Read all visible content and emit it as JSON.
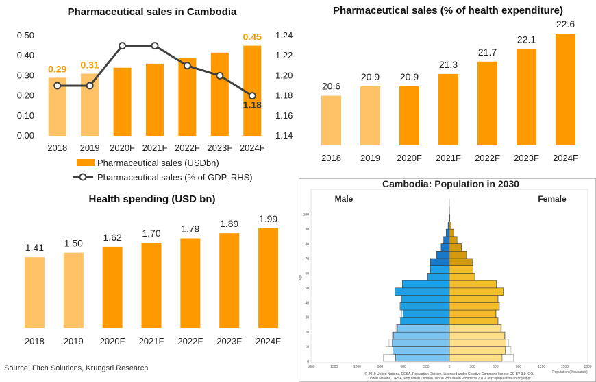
{
  "source": "Source: Fitch Solutions, Krungsri Research",
  "colors": {
    "light": "#ffc266",
    "dark": "#ff9900",
    "line": "#404040",
    "male": "#1b9be0",
    "female": "#e8ae1f"
  },
  "chart_data": [
    {
      "type": "bar+line",
      "title": "Pharmaceutical sales in Cambodia",
      "categories": [
        "2018",
        "2019",
        "2020F",
        "2021F",
        "2022F",
        "2023F",
        "2024F"
      ],
      "series": [
        {
          "name": "Pharmaceutical sales (USDbn)",
          "type": "bar",
          "axis": "left",
          "values": [
            0.29,
            0.31,
            0.34,
            0.36,
            0.39,
            0.415,
            0.45
          ],
          "data_labels": [
            "0.29",
            "0.31",
            "",
            "",
            "",
            "",
            "0.45"
          ]
        },
        {
          "name": "Pharmaceutical sales (% of GDP, RHS)",
          "type": "line",
          "axis": "right",
          "values": [
            1.19,
            1.19,
            1.23,
            1.23,
            1.21,
            1.2,
            1.18
          ],
          "data_labels": [
            "",
            "",
            "",
            "",
            "",
            "",
            "1.18"
          ]
        }
      ],
      "ylim": [
        0,
        0.5
      ],
      "yticks": [
        "0.00",
        "0.10",
        "0.20",
        "0.30",
        "0.40",
        "0.50"
      ],
      "y2lim": [
        1.14,
        1.24
      ],
      "y2ticks": [
        "1.14",
        "1.16",
        "1.18",
        "1.20",
        "1.22",
        "1.24"
      ],
      "grid": false,
      "legend": "bottom"
    },
    {
      "type": "bar",
      "title": "Pharmaceutical sales (% of health expenditure)",
      "categories": [
        "2018",
        "2019",
        "2020F",
        "2021F",
        "2022F",
        "2023F",
        "2024F"
      ],
      "values": [
        20.6,
        20.9,
        20.9,
        21.3,
        21.7,
        22.1,
        22.6
      ],
      "data_labels": [
        "20.6",
        "20.9",
        "20.9",
        "21.3",
        "21.7",
        "22.1",
        "22.6"
      ],
      "ylim": [
        19.0,
        22.8
      ],
      "grid": false
    },
    {
      "type": "bar",
      "title": "Health spending (USD bn)",
      "categories": [
        "2018",
        "2019",
        "2020F",
        "2021F",
        "2022F",
        "2023F",
        "2024F"
      ],
      "values": [
        1.41,
        1.5,
        1.62,
        1.7,
        1.79,
        1.89,
        1.99
      ],
      "data_labels": [
        "1.41",
        "1.50",
        "1.62",
        "1.70",
        "1.79",
        "1.89",
        "1.99"
      ],
      "ylim": [
        0,
        2.4
      ],
      "grid": false
    },
    {
      "type": "population-pyramid",
      "title": "Cambodia: Population in 2030",
      "left_label": "Male",
      "right_label": "Female",
      "ylabel": "Age",
      "xlabel": "Population (thousands)",
      "age_ticks": [
        "0",
        "10",
        "20",
        "30",
        "40",
        "50",
        "60",
        "70",
        "80",
        "90",
        "100"
      ],
      "x_ticks": [
        "1800",
        "1500",
        "1200",
        "900",
        "600",
        "300",
        "0",
        "300",
        "600",
        "900",
        "1200",
        "1500",
        "1800"
      ],
      "age_groups": [
        "0-4",
        "5-9",
        "10-14",
        "15-19",
        "20-24",
        "25-29",
        "30-34",
        "35-39",
        "40-44",
        "45-49",
        "50-54",
        "55-59",
        "60-64",
        "65-69",
        "70-74",
        "75-79",
        "80-84",
        "85-89",
        "90-94",
        "95-99",
        "100+"
      ],
      "male": [
        850,
        890,
        900,
        880,
        820,
        770,
        730,
        770,
        750,
        860,
        740,
        340,
        300,
        300,
        200,
        130,
        90,
        50,
        20,
        5,
        1
      ],
      "female": [
        830,
        880,
        890,
        870,
        810,
        760,
        730,
        780,
        760,
        850,
        740,
        400,
        370,
        360,
        270,
        190,
        120,
        70,
        30,
        8,
        2
      ],
      "male_comparison": [
        1040,
        1000,
        950,
        900,
        840,
        790,
        750,
        780,
        760,
        860,
        740,
        340,
        300,
        300,
        200,
        130,
        90,
        50,
        20,
        5,
        1
      ],
      "female_comparison": [
        1010,
        970,
        930,
        880,
        820,
        770,
        740,
        790,
        770,
        850,
        740,
        400,
        370,
        360,
        270,
        190,
        120,
        70,
        30,
        8,
        2
      ],
      "credit_1": "© 2019 United Nations, DESA, Population Division. Licensed under Creative Commons license CC BY 3.0 IGO.",
      "credit_2": "United Nations, DESA, Population Division. World Population Prospects 2019. http://population.un.org/wpp/"
    }
  ]
}
